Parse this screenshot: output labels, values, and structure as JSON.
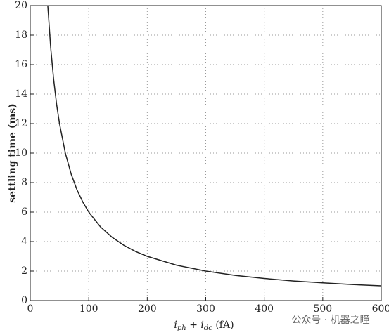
{
  "chart_data": {
    "type": "line",
    "x_label": [
      "i",
      "ph",
      " + ",
      "i",
      "dc",
      " (fA)"
    ],
    "y_label": "settling time (ms)",
    "watermark": "公众号 · 机器之瞳",
    "x": [
      30,
      35,
      40,
      45,
      50,
      60,
      70,
      80,
      90,
      100,
      120,
      140,
      160,
      180,
      200,
      250,
      300,
      350,
      400,
      450,
      500,
      550,
      600
    ],
    "series": [
      {
        "color": "#222222",
        "values": [
          20,
          17.14,
          15,
          13.33,
          12,
          10,
          8.57,
          7.5,
          6.67,
          6,
          5,
          4.29,
          3.75,
          3.33,
          3,
          2.4,
          2,
          1.71,
          1.5,
          1.33,
          1.2,
          1.09,
          1
        ]
      }
    ],
    "xlim": [
      0,
      600
    ],
    "xticks": [
      0,
      100,
      200,
      300,
      400,
      500,
      600
    ],
    "ylim": [
      0,
      20
    ],
    "yticks": [
      0,
      2,
      4,
      6,
      8,
      10,
      12,
      14,
      16,
      18,
      20
    ],
    "grid": true
  }
}
